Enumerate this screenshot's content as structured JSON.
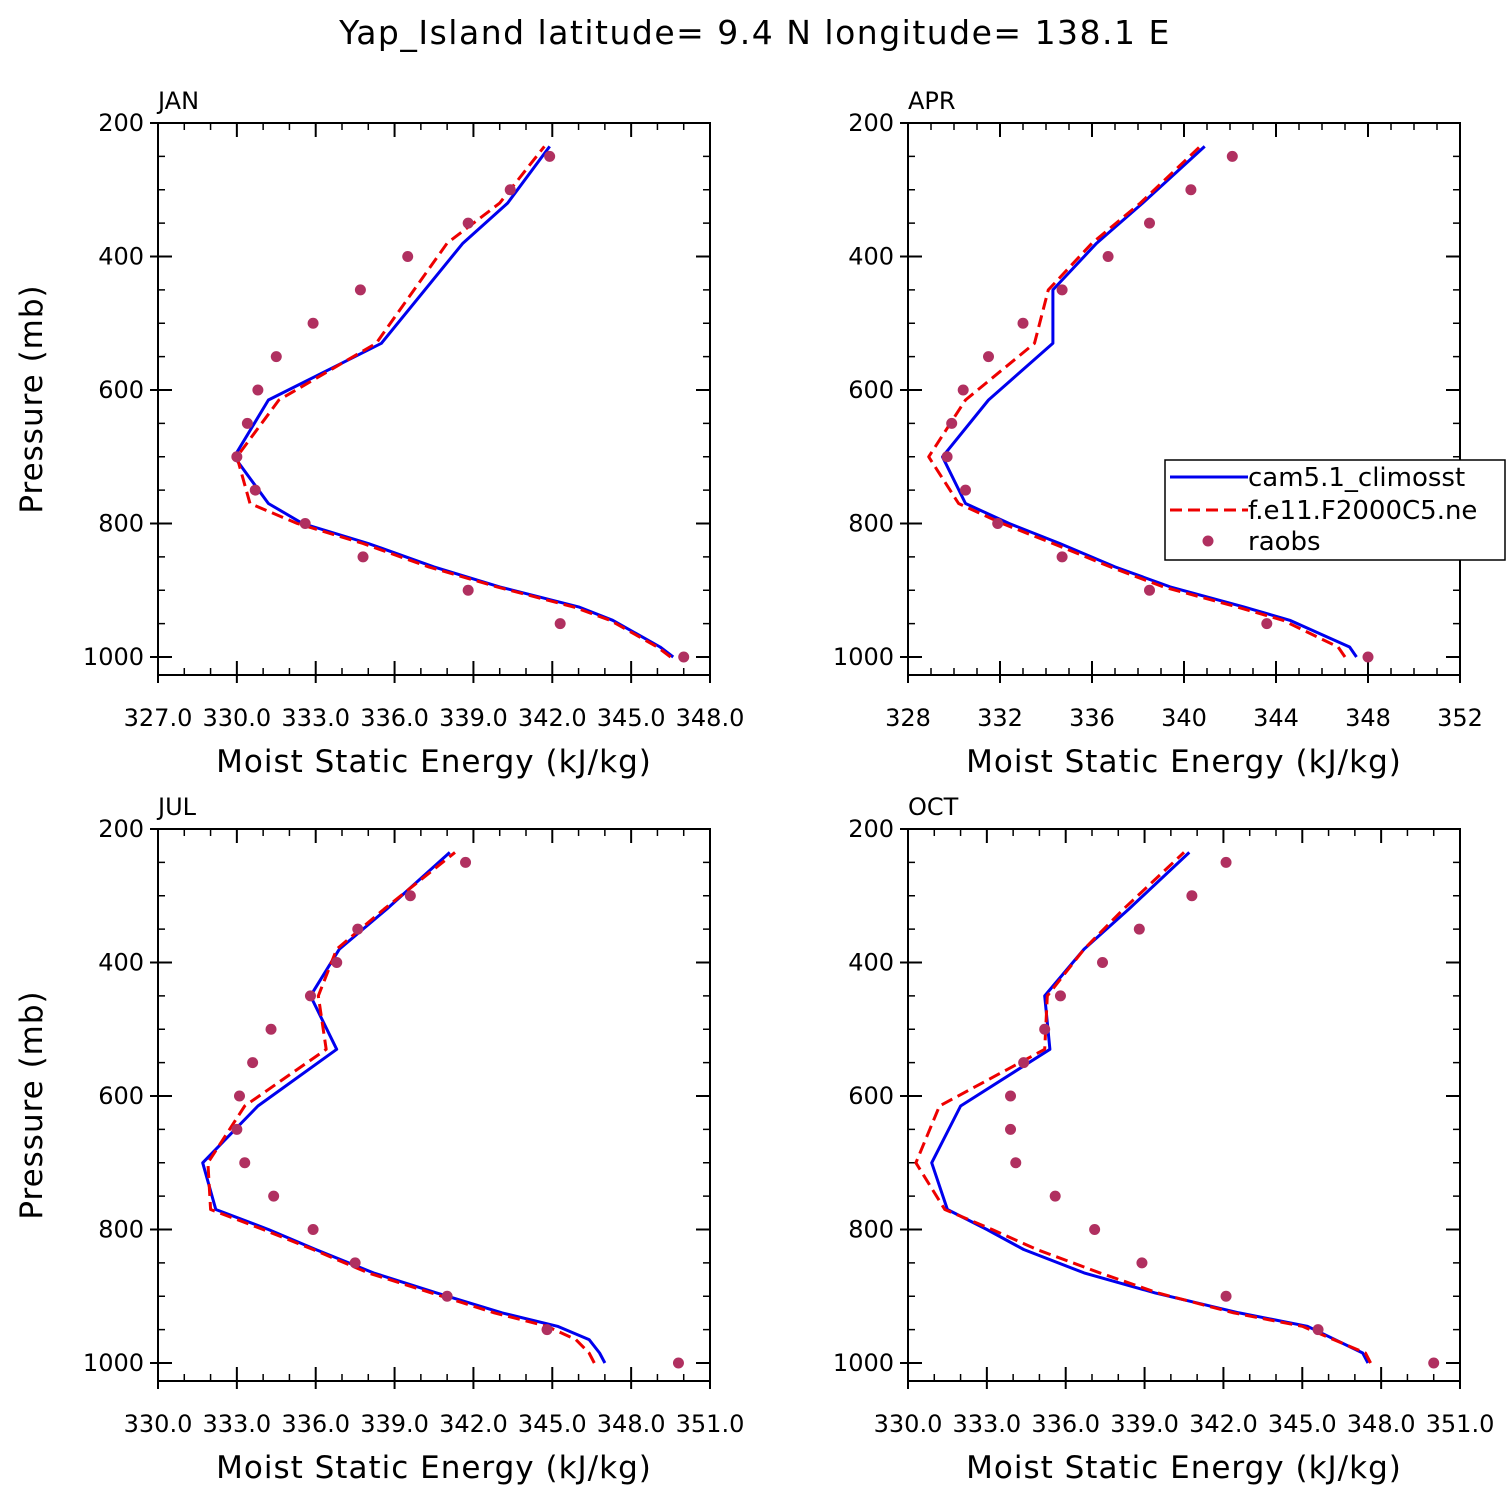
{
  "figure": {
    "title": "Yap_Island  latitude= 9.4 N longitude= 138.1 E"
  },
  "colors": {
    "cam": "#0000ee",
    "fe11": "#ee0000",
    "raobs": "#b03060"
  },
  "legend": {
    "entries": [
      "cam5.1_climosst",
      "f.e11.F2000C5.ne",
      "raobs"
    ],
    "placement": "right of APR panel, clipped by figure edge"
  },
  "chart_data": [
    {
      "type": "line",
      "panel_title": "JAN",
      "xlabel": "Moist Static Energy (kJ/kg)",
      "ylabel": "Pressure (mb)",
      "xlim": [
        327,
        348
      ],
      "xticks": [
        327,
        330,
        333,
        336,
        339,
        342,
        345,
        348
      ],
      "xticklabels": [
        "327.0",
        "330.0",
        "333.0",
        "336.0",
        "339.0",
        "342.0",
        "345.0",
        "348.0"
      ],
      "ylim": [
        200,
        1000
      ],
      "yticks": [
        200,
        400,
        600,
        800,
        1000
      ],
      "y_inverted": true,
      "series": [
        {
          "name": "cam5.1_climosst",
          "style": "solid",
          "y": [
            1000,
            985,
            945,
            925,
            895,
            865,
            830,
            800,
            770,
            700,
            615,
            530,
            380,
            320,
            235
          ],
          "x": [
            346.6,
            346.1,
            344.3,
            343.0,
            340.0,
            337.5,
            335.0,
            332.5,
            331.2,
            329.9,
            331.2,
            335.5,
            338.6,
            340.3,
            341.9
          ]
        },
        {
          "name": "f.e11.F2000C5.ne",
          "style": "dashed",
          "y": [
            1000,
            985,
            945,
            925,
            895,
            865,
            830,
            800,
            770,
            700,
            615,
            530,
            380,
            320,
            235
          ],
          "x": [
            346.5,
            346.0,
            344.2,
            342.8,
            339.9,
            337.3,
            334.8,
            332.3,
            330.5,
            330.0,
            331.6,
            335.3,
            338.0,
            340.0,
            341.7
          ]
        },
        {
          "name": "raobs",
          "style": "markers",
          "y": [
            1000,
            950,
            900,
            850,
            800,
            750,
            700,
            650,
            600,
            550,
            500,
            450,
            400,
            350,
            300,
            250
          ],
          "x": [
            347.0,
            342.3,
            338.8,
            334.8,
            332.6,
            330.7,
            330.0,
            330.4,
            330.8,
            331.5,
            332.9,
            334.7,
            336.5,
            338.8,
            340.4,
            341.9
          ]
        }
      ]
    },
    {
      "type": "line",
      "panel_title": "APR",
      "xlabel": "Moist Static Energy (kJ/kg)",
      "ylabel": "",
      "xlim": [
        328,
        352
      ],
      "xticks": [
        328,
        332,
        336,
        340,
        344,
        348,
        352
      ],
      "xticklabels": [
        "328",
        "332",
        "336",
        "340",
        "344",
        "348",
        "352"
      ],
      "ylim": [
        200,
        1000
      ],
      "yticks": [
        200,
        400,
        600,
        800,
        1000
      ],
      "y_inverted": true,
      "series": [
        {
          "name": "cam5.1_climosst",
          "style": "solid",
          "y": [
            1000,
            985,
            945,
            925,
            895,
            865,
            830,
            800,
            770,
            700,
            615,
            530,
            450,
            380,
            320,
            235
          ],
          "x": [
            347.5,
            347.2,
            344.6,
            342.6,
            339.4,
            337.0,
            334.6,
            332.4,
            330.5,
            329.5,
            331.5,
            334.3,
            334.3,
            336.2,
            338.2,
            340.9
          ]
        },
        {
          "name": "f.e11.F2000C5.ne",
          "style": "dashed",
          "y": [
            1000,
            985,
            945,
            925,
            895,
            865,
            830,
            800,
            770,
            700,
            615,
            530,
            450,
            380,
            320,
            235
          ],
          "x": [
            347.0,
            346.7,
            344.3,
            342.3,
            339.1,
            336.8,
            334.3,
            332.1,
            330.2,
            328.9,
            330.5,
            333.5,
            334.1,
            336.0,
            338.1,
            340.7
          ]
        },
        {
          "name": "raobs",
          "style": "markers",
          "y": [
            1000,
            950,
            900,
            850,
            800,
            750,
            700,
            650,
            600,
            550,
            500,
            450,
            400,
            350,
            300,
            250
          ],
          "x": [
            348.0,
            343.6,
            338.5,
            334.7,
            331.9,
            330.5,
            329.7,
            329.9,
            330.4,
            331.5,
            333.0,
            334.7,
            336.7,
            338.5,
            340.3,
            342.1
          ]
        }
      ]
    },
    {
      "type": "line",
      "panel_title": "JUL",
      "xlabel": "Moist Static Energy (kJ/kg)",
      "ylabel": "Pressure (mb)",
      "xlim": [
        330,
        351
      ],
      "xticks": [
        330,
        333,
        336,
        339,
        342,
        345,
        348,
        351
      ],
      "xticklabels": [
        "330.0",
        "333.0",
        "336.0",
        "339.0",
        "342.0",
        "345.0",
        "348.0",
        "351.0"
      ],
      "ylim": [
        200,
        1000
      ],
      "yticks": [
        200,
        400,
        600,
        800,
        1000
      ],
      "y_inverted": true,
      "series": [
        {
          "name": "cam5.1_climosst",
          "style": "solid",
          "y": [
            1000,
            985,
            965,
            945,
            925,
            895,
            865,
            830,
            800,
            770,
            700,
            615,
            530,
            450,
            380,
            320,
            235
          ],
          "x": [
            347.0,
            346.8,
            346.4,
            345.2,
            343.1,
            340.6,
            338.2,
            336.0,
            334.2,
            332.2,
            331.7,
            333.8,
            336.8,
            335.8,
            336.9,
            338.7,
            341.1
          ]
        },
        {
          "name": "f.e11.F2000C5.ne",
          "style": "dashed",
          "y": [
            1000,
            985,
            965,
            945,
            925,
            895,
            865,
            830,
            800,
            770,
            700,
            615,
            530,
            450,
            380,
            320,
            235
          ],
          "x": [
            346.6,
            346.4,
            345.9,
            344.8,
            342.8,
            340.4,
            338.0,
            335.9,
            334.0,
            332.0,
            331.9,
            333.3,
            336.4,
            336.1,
            336.8,
            338.6,
            341.3
          ]
        },
        {
          "name": "raobs",
          "style": "markers",
          "y": [
            1000,
            950,
            900,
            850,
            800,
            750,
            700,
            650,
            600,
            550,
            500,
            450,
            400,
            350,
            300,
            250
          ],
          "x": [
            349.8,
            344.8,
            341.0,
            337.5,
            335.9,
            334.4,
            333.3,
            333.0,
            333.1,
            333.6,
            334.3,
            335.8,
            336.8,
            337.6,
            339.6,
            341.7
          ]
        }
      ]
    },
    {
      "type": "line",
      "panel_title": "OCT",
      "xlabel": "Moist Static Energy (kJ/kg)",
      "ylabel": "",
      "xlim": [
        330,
        351
      ],
      "xticks": [
        330,
        333,
        336,
        339,
        342,
        345,
        348,
        351
      ],
      "xticklabels": [
        "330.0",
        "333.0",
        "336.0",
        "339.0",
        "342.0",
        "345.0",
        "348.0",
        "351.0"
      ],
      "ylim": [
        200,
        1000
      ],
      "yticks": [
        200,
        400,
        600,
        800,
        1000
      ],
      "y_inverted": true,
      "series": [
        {
          "name": "cam5.1_climosst",
          "style": "solid",
          "y": [
            1000,
            985,
            945,
            925,
            895,
            865,
            830,
            800,
            770,
            700,
            615,
            530,
            450,
            380,
            320,
            235
          ],
          "x": [
            347.5,
            347.3,
            345.2,
            342.6,
            339.4,
            336.7,
            334.4,
            333.0,
            331.5,
            330.9,
            332.0,
            335.4,
            335.2,
            336.7,
            338.4,
            340.7
          ]
        },
        {
          "name": "f.e11.F2000C5.ne",
          "style": "dashed",
          "y": [
            1000,
            985,
            945,
            925,
            895,
            865,
            830,
            800,
            770,
            700,
            615,
            530,
            450,
            380,
            320,
            235
          ],
          "x": [
            347.6,
            347.4,
            345.0,
            342.4,
            339.5,
            337.3,
            334.9,
            333.2,
            331.4,
            330.3,
            331.2,
            335.2,
            335.3,
            336.7,
            338.2,
            340.5
          ]
        },
        {
          "name": "raobs",
          "style": "markers",
          "y": [
            1000,
            950,
            900,
            850,
            800,
            750,
            700,
            650,
            600,
            550,
            500,
            450,
            400,
            350,
            300,
            250
          ],
          "x": [
            350.0,
            345.6,
            342.1,
            338.9,
            337.1,
            335.6,
            334.1,
            333.9,
            333.9,
            334.4,
            335.2,
            335.8,
            337.4,
            338.8,
            340.8,
            342.1
          ]
        }
      ]
    }
  ]
}
